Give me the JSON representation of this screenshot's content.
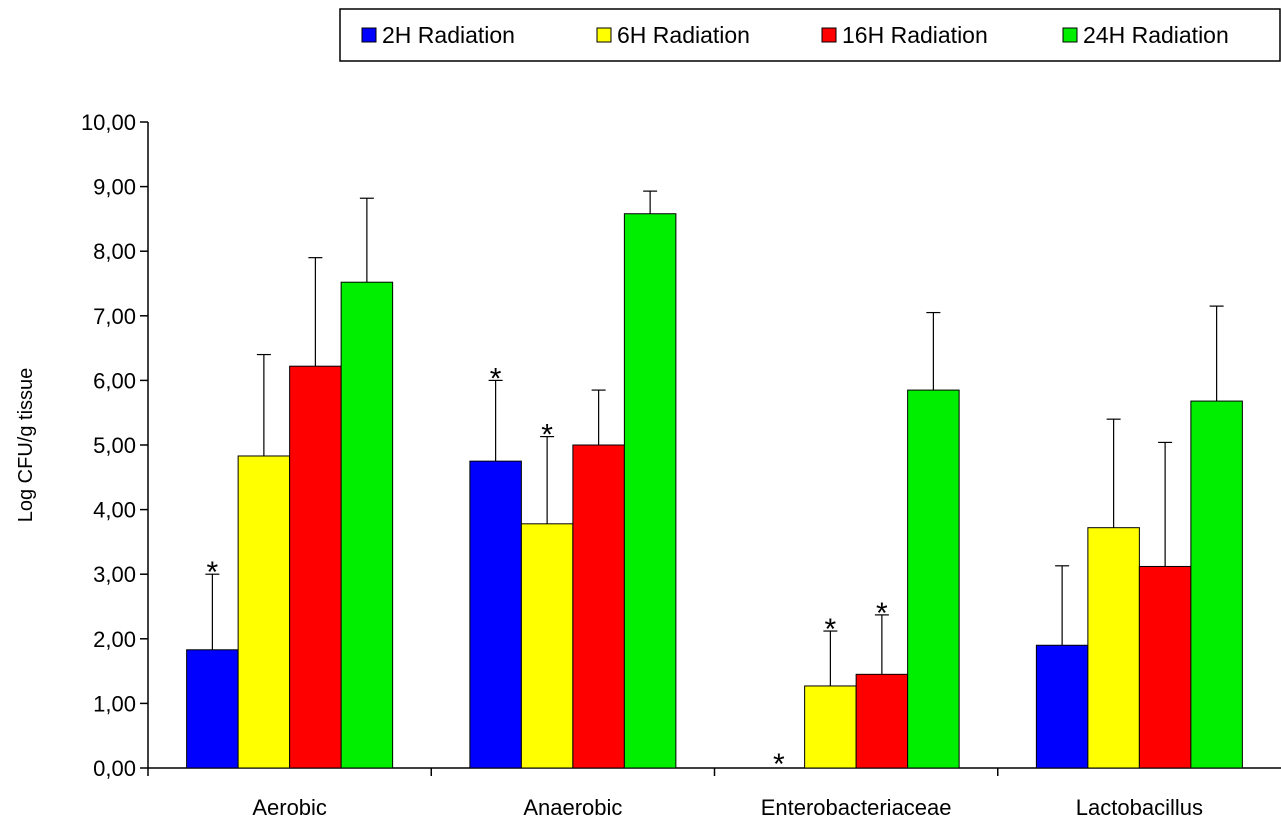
{
  "chart_data": {
    "type": "bar",
    "title": "",
    "xlabel": "",
    "ylabel": "Log CFU/g tissue",
    "ylim": [
      0,
      10
    ],
    "yticks": [
      "0,00",
      "1,00",
      "2,00",
      "3,00",
      "4,00",
      "5,00",
      "6,00",
      "7,00",
      "8,00",
      "9,00",
      "10,00"
    ],
    "categories": [
      "Aerobic",
      "Anaerobic",
      "Enterobacteriaceae",
      "Lactobacillus"
    ],
    "legend_position": "top-right",
    "grid": false,
    "significance_marker": "*",
    "series": [
      {
        "name": "2H Radiation",
        "color": "#0000ff",
        "values": [
          1.83,
          4.75,
          0.0,
          1.9
        ],
        "errors": [
          1.17,
          1.25,
          0.0,
          1.23
        ],
        "significant": [
          true,
          true,
          true,
          false
        ]
      },
      {
        "name": "6H Radiation",
        "color": "#ffff00",
        "values": [
          4.83,
          3.78,
          1.27,
          3.72
        ],
        "errors": [
          1.57,
          1.35,
          0.85,
          1.68
        ],
        "significant": [
          false,
          true,
          true,
          false
        ]
      },
      {
        "name": "16H Radiation",
        "color": "#ff0000",
        "values": [
          6.22,
          5.0,
          1.45,
          3.12
        ],
        "errors": [
          1.68,
          0.85,
          0.92,
          1.92
        ],
        "significant": [
          false,
          false,
          true,
          false
        ]
      },
      {
        "name": "24H Radiation",
        "color": "#00ee00",
        "values": [
          7.52,
          8.58,
          5.85,
          5.68
        ],
        "errors": [
          1.3,
          0.35,
          1.2,
          1.47
        ],
        "significant": [
          false,
          false,
          false,
          false
        ]
      }
    ]
  }
}
